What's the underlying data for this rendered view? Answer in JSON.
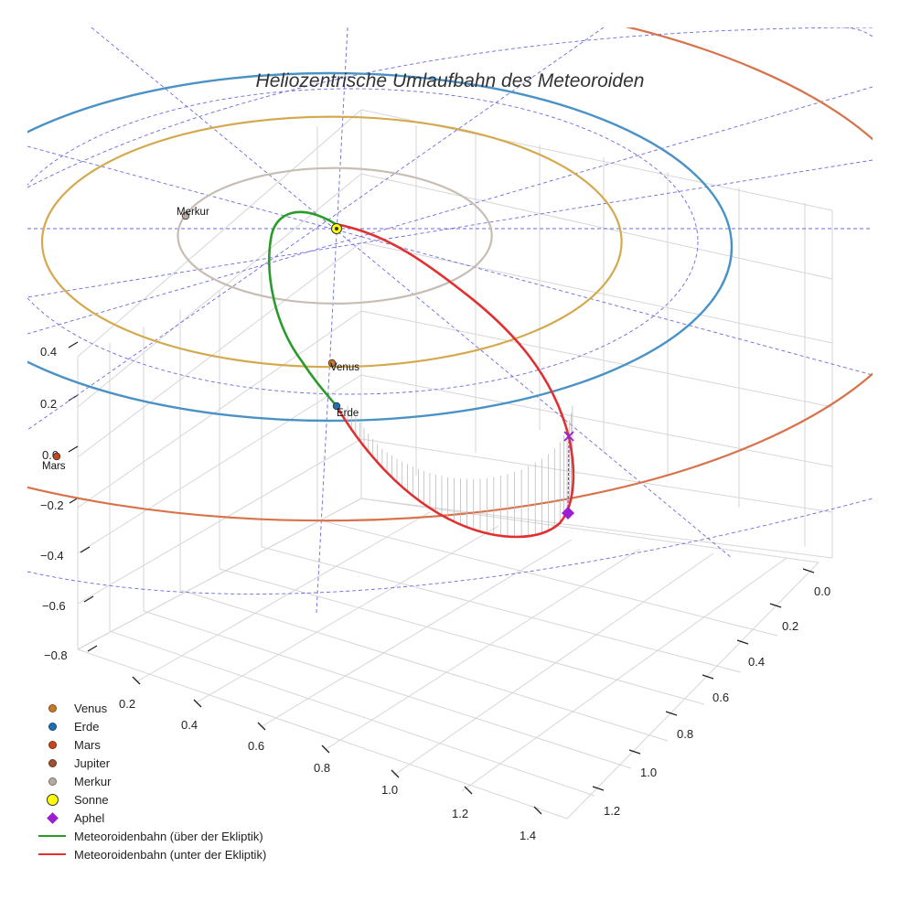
{
  "chart_data": {
    "type": "line",
    "title": "Heliozentrische Umlaufbahn des Meteoroiden",
    "axes": {
      "z_ticks": [
        0.4,
        0.2,
        0.0,
        -0.2,
        -0.4,
        -0.6,
        -0.8
      ],
      "x_ticks": [
        0.2,
        0.4,
        0.6,
        0.8,
        1.0,
        1.2,
        1.4
      ],
      "y_ticks": [
        0.0,
        0.2,
        0.4,
        0.6,
        0.8,
        1.0,
        1.2
      ],
      "z_tick_labels": [
        "0.4",
        "0.2",
        "0.0",
        "−0.2",
        "−0.4",
        "−0.6",
        "−0.8"
      ],
      "x_tick_labels": [
        "0.2",
        "0.4",
        "0.6",
        "0.8",
        "1.0",
        "1.2",
        "1.4"
      ],
      "y_tick_labels": [
        "0.0",
        "0.2",
        "0.4",
        "0.6",
        "0.8",
        "1.0",
        "1.2"
      ],
      "grid": true
    },
    "planet_orbits": [
      {
        "name": "Merkur",
        "radius_au": 0.39,
        "color": "#c8bdb4"
      },
      {
        "name": "Venus",
        "radius_au": 0.72,
        "color": "#d4a94e"
      },
      {
        "name": "Erde",
        "radius_au": 1.0,
        "color": "#4a92c6"
      },
      {
        "name": "Mars",
        "radius_au": 1.52,
        "color": "#d8724a"
      }
    ],
    "planets": [
      {
        "name": "Merkur",
        "label": "Merkur",
        "color": "#b8aaa0"
      },
      {
        "name": "Venus",
        "label": "Venus",
        "color": "#c8782a"
      },
      {
        "name": "Erde",
        "label": "Erde",
        "color": "#1f6fb5"
      },
      {
        "name": "Mars",
        "label": "Mars",
        "color": "#c8461c"
      }
    ],
    "meteoroid_orbit": {
      "perihelion_au": 0.06,
      "aphelion_au": 1.32,
      "above_ecliptic_color": "#2a9a2a",
      "below_ecliptic_color": "#e03030"
    },
    "legend": [
      {
        "label": "Venus",
        "kind": "dot",
        "color": "#c8782a"
      },
      {
        "label": "Erde",
        "kind": "dot",
        "color": "#1f6fb5"
      },
      {
        "label": "Mars",
        "kind": "dot",
        "color": "#c8461c"
      },
      {
        "label": "Jupiter",
        "kind": "dot",
        "color": "#a0522d"
      },
      {
        "label": "Merkur",
        "kind": "dot",
        "color": "#b8aaa0"
      },
      {
        "label": "Sonne",
        "kind": "bigdot",
        "color": "#ffff00"
      },
      {
        "label": "Aphel",
        "kind": "diamond",
        "color": "#9b1fd1"
      },
      {
        "label": "Meteoroidenbahn (über der Ekliptik)",
        "kind": "line",
        "color": "#2a9a2a"
      },
      {
        "label": "Meteoroidenbahn (unter der Ekliptik)",
        "kind": "line",
        "color": "#e03030"
      }
    ]
  }
}
